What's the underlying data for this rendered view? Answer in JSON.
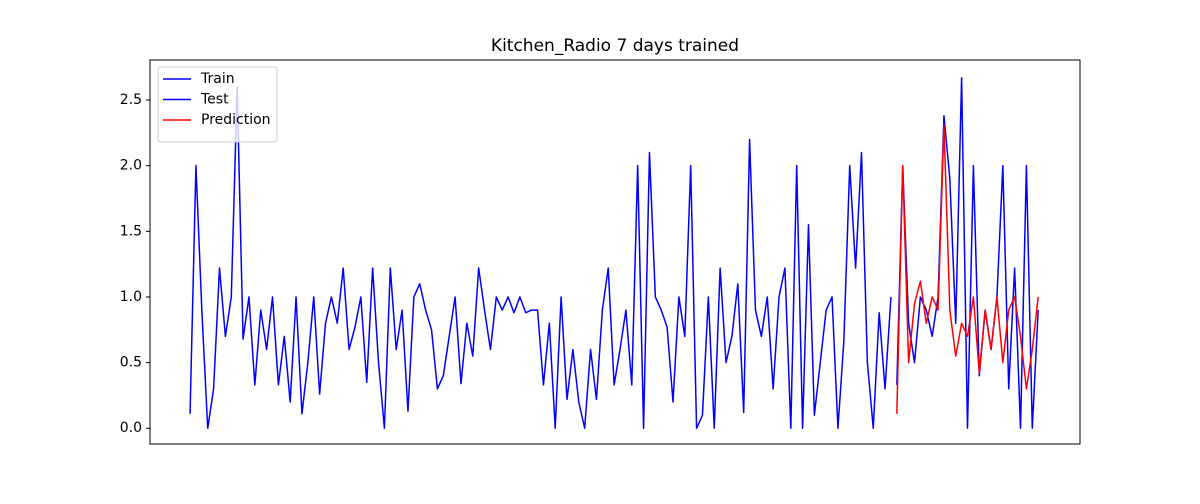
{
  "chart_data": {
    "type": "line",
    "title": "Kitchen_Radio 7 days trained",
    "ylim": [
      -0.12,
      2.805
    ],
    "yticks": [
      {
        "value": 0,
        "label": "0.0"
      },
      {
        "value": 0.5,
        "label": "0.5"
      },
      {
        "value": 1,
        "label": "1.0"
      },
      {
        "value": 1.5,
        "label": "1.5"
      },
      {
        "value": 2,
        "label": "2.0"
      },
      {
        "value": 2.5,
        "label": "2.5"
      }
    ],
    "xlim": [
      -6.8,
      151.1
    ],
    "legend": "upper left",
    "series": [
      {
        "name": "Train",
        "color": "#0000ff",
        "values": [
          0.11,
          2.0,
          0.9,
          0.0,
          0.3,
          1.22,
          0.7,
          1.0,
          2.6,
          0.68,
          1.0,
          0.33,
          0.9,
          0.6,
          1.0,
          0.33,
          0.7,
          0.2,
          1.0,
          0.11,
          0.5,
          1.0,
          0.26,
          0.8,
          1.0,
          0.8,
          1.22,
          0.6,
          0.77,
          1.0,
          0.35,
          1.22,
          0.5,
          0.0,
          1.22,
          0.6,
          0.9,
          0.13,
          1.0,
          1.1,
          0.9,
          0.75,
          0.3,
          0.4,
          0.7,
          1.0,
          0.34,
          0.8,
          0.55,
          1.22,
          0.9,
          0.6,
          1.0,
          0.9,
          1.0,
          0.88,
          1.0,
          0.88,
          0.9,
          0.9,
          0.33,
          0.8,
          0.0,
          1.0,
          0.22,
          0.6,
          0.2,
          0.0,
          0.6,
          0.22,
          0.9,
          1.22,
          0.33,
          0.6,
          0.9,
          0.33,
          2.0,
          0.0,
          2.1,
          1.0,
          0.9,
          0.77,
          0.2,
          1.0,
          0.7,
          2.0,
          0.0,
          0.1,
          1.0,
          0.0,
          1.22,
          0.5,
          0.7,
          1.1,
          0.12,
          2.2,
          0.9,
          0.7,
          1.0,
          0.3,
          1.0,
          1.22,
          0.0,
          2.0,
          0.0,
          1.55,
          0.1,
          0.5,
          0.9,
          1.0,
          0.0,
          0.66,
          2.0,
          1.22,
          2.1,
          0.5,
          0.0,
          0.88,
          0.3,
          1.0,
          null,
          null,
          null,
          null,
          null,
          null,
          null,
          null,
          null,
          null,
          null,
          null,
          null,
          null,
          null,
          null,
          null,
          null,
          null,
          null,
          null,
          null,
          null,
          null,
          null
        ]
      },
      {
        "name": "Test",
        "color": "#0000ff",
        "values": [
          null,
          null,
          null,
          null,
          null,
          null,
          null,
          null,
          null,
          null,
          null,
          null,
          null,
          null,
          null,
          null,
          null,
          null,
          null,
          null,
          null,
          null,
          null,
          null,
          null,
          null,
          null,
          null,
          null,
          null,
          null,
          null,
          null,
          null,
          null,
          null,
          null,
          null,
          null,
          null,
          null,
          null,
          null,
          null,
          null,
          null,
          null,
          null,
          null,
          null,
          null,
          null,
          null,
          null,
          null,
          null,
          null,
          null,
          null,
          null,
          null,
          null,
          null,
          null,
          null,
          null,
          null,
          null,
          null,
          null,
          null,
          null,
          null,
          null,
          null,
          null,
          null,
          null,
          null,
          null,
          null,
          null,
          null,
          null,
          null,
          null,
          null,
          null,
          null,
          null,
          null,
          null,
          null,
          null,
          null,
          null,
          null,
          null,
          null,
          null,
          null,
          null,
          null,
          null,
          null,
          null,
          null,
          null,
          null,
          null,
          null,
          null,
          null,
          null,
          null,
          null,
          null,
          null,
          null,
          null,
          0.33,
          2.0,
          0.8,
          0.5,
          1.0,
          0.9,
          0.7,
          1.0,
          2.38,
          1.9,
          0.8,
          2.67,
          0.0,
          2.0,
          0.4,
          0.9,
          0.6,
          1.0,
          2.0,
          0.3,
          1.22,
          0.0,
          2.0,
          0.0,
          0.9
        ]
      },
      {
        "name": "Prediction",
        "color": "#ff0000",
        "values": [
          null,
          null,
          null,
          null,
          null,
          null,
          null,
          null,
          null,
          null,
          null,
          null,
          null,
          null,
          null,
          null,
          null,
          null,
          null,
          null,
          null,
          null,
          null,
          null,
          null,
          null,
          null,
          null,
          null,
          null,
          null,
          null,
          null,
          null,
          null,
          null,
          null,
          null,
          null,
          null,
          null,
          null,
          null,
          null,
          null,
          null,
          null,
          null,
          null,
          null,
          null,
          null,
          null,
          null,
          null,
          null,
          null,
          null,
          null,
          null,
          null,
          null,
          null,
          null,
          null,
          null,
          null,
          null,
          null,
          null,
          null,
          null,
          null,
          null,
          null,
          null,
          null,
          null,
          null,
          null,
          null,
          null,
          null,
          null,
          null,
          null,
          null,
          null,
          null,
          null,
          null,
          null,
          null,
          null,
          null,
          null,
          null,
          null,
          null,
          null,
          null,
          null,
          null,
          null,
          null,
          null,
          null,
          null,
          null,
          null,
          null,
          null,
          null,
          null,
          null,
          null,
          null,
          null,
          null,
          null,
          0.11,
          2.0,
          0.5,
          0.95,
          1.12,
          0.8,
          1.0,
          0.9,
          2.31,
          0.9,
          0.55,
          0.8,
          0.7,
          1.0,
          0.42,
          0.9,
          0.6,
          1.0,
          0.5,
          0.9,
          1.0,
          0.7,
          0.3,
          0.6,
          1.0
        ]
      }
    ]
  }
}
